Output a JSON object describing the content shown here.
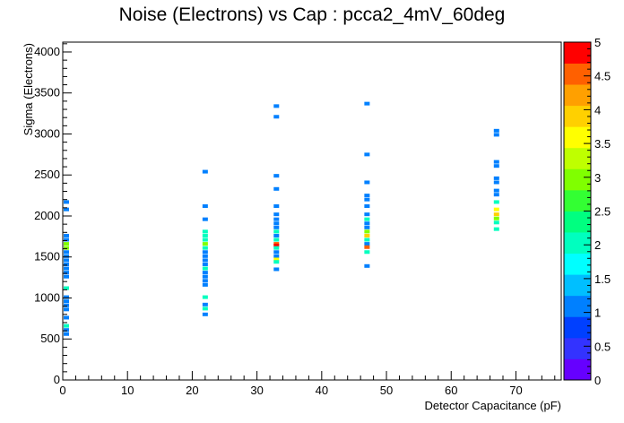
{
  "chart_data": {
    "type": "scatter",
    "title": "Noise (Electrons) vs Cap : pcca2_4mV_60deg",
    "xlabel": "Detector Capacitance (pF)",
    "ylabel": "Sigma (Electrons)",
    "xlim": [
      0,
      77
    ],
    "ylim": [
      0,
      4120
    ],
    "xticks": [
      0,
      10,
      20,
      30,
      40,
      50,
      60,
      70
    ],
    "yticks": [
      0,
      500,
      1000,
      1500,
      2000,
      2500,
      3000,
      3500,
      4000
    ],
    "z_range": [
      0,
      5
    ],
    "z_ticks": [
      0,
      0.5,
      1,
      1.5,
      2,
      2.5,
      3,
      3.5,
      4,
      4.5,
      5
    ],
    "palette": [
      "#6600ff",
      "#3333ff",
      "#0040ff",
      "#0080ff",
      "#00bfff",
      "#00ffff",
      "#00ffbf",
      "#00ff80",
      "#33ff33",
      "#80ff00",
      "#bfff00",
      "#ffff00",
      "#ffd000",
      "#ffa000",
      "#ff6000",
      "#ff0000"
    ],
    "points": [
      {
        "x": 0,
        "y": 2170,
        "z": 1
      },
      {
        "x": 0,
        "y": 2080,
        "z": 1
      },
      {
        "x": 0,
        "y": 1760,
        "z": 1
      },
      {
        "x": 0,
        "y": 1710,
        "z": 1
      },
      {
        "x": 0,
        "y": 1660,
        "z": 3
      },
      {
        "x": 0,
        "y": 1610,
        "z": 3
      },
      {
        "x": 0,
        "y": 1560,
        "z": 1
      },
      {
        "x": 0,
        "y": 1510,
        "z": 1
      },
      {
        "x": 0,
        "y": 1460,
        "z": 1
      },
      {
        "x": 0,
        "y": 1410,
        "z": 1
      },
      {
        "x": 0,
        "y": 1360,
        "z": 1
      },
      {
        "x": 0,
        "y": 1310,
        "z": 1
      },
      {
        "x": 0,
        "y": 1260,
        "z": 1
      },
      {
        "x": 0,
        "y": 1120,
        "z": 2
      },
      {
        "x": 0,
        "y": 1010,
        "z": 1
      },
      {
        "x": 0,
        "y": 960,
        "z": 1
      },
      {
        "x": 0,
        "y": 910,
        "z": 1
      },
      {
        "x": 0,
        "y": 860,
        "z": 1
      },
      {
        "x": 0,
        "y": 760,
        "z": 1
      },
      {
        "x": 0,
        "y": 660,
        "z": 2
      },
      {
        "x": 0,
        "y": 610,
        "z": 1
      },
      {
        "x": 0,
        "y": 560,
        "z": 1
      },
      {
        "x": 22,
        "y": 2540,
        "z": 1
      },
      {
        "x": 22,
        "y": 2120,
        "z": 1
      },
      {
        "x": 22,
        "y": 1960,
        "z": 1
      },
      {
        "x": 22,
        "y": 1810,
        "z": 2
      },
      {
        "x": 22,
        "y": 1760,
        "z": 2
      },
      {
        "x": 22,
        "y": 1710,
        "z": 2
      },
      {
        "x": 22,
        "y": 1660,
        "z": 3
      },
      {
        "x": 22,
        "y": 1610,
        "z": 2
      },
      {
        "x": 22,
        "y": 1560,
        "z": 1
      },
      {
        "x": 22,
        "y": 1510,
        "z": 1
      },
      {
        "x": 22,
        "y": 1460,
        "z": 1
      },
      {
        "x": 22,
        "y": 1410,
        "z": 1
      },
      {
        "x": 22,
        "y": 1360,
        "z": 2
      },
      {
        "x": 22,
        "y": 1310,
        "z": 1
      },
      {
        "x": 22,
        "y": 1260,
        "z": 1
      },
      {
        "x": 22,
        "y": 1210,
        "z": 1
      },
      {
        "x": 22,
        "y": 1160,
        "z": 1
      },
      {
        "x": 22,
        "y": 1010,
        "z": 2
      },
      {
        "x": 22,
        "y": 920,
        "z": 1
      },
      {
        "x": 22,
        "y": 870,
        "z": 2
      },
      {
        "x": 22,
        "y": 800,
        "z": 1
      },
      {
        "x": 33,
        "y": 3340,
        "z": 1
      },
      {
        "x": 33,
        "y": 3210,
        "z": 1
      },
      {
        "x": 33,
        "y": 2490,
        "z": 1
      },
      {
        "x": 33,
        "y": 2330,
        "z": 1
      },
      {
        "x": 33,
        "y": 2120,
        "z": 1
      },
      {
        "x": 33,
        "y": 2020,
        "z": 1
      },
      {
        "x": 33,
        "y": 1960,
        "z": 1
      },
      {
        "x": 33,
        "y": 1910,
        "z": 1
      },
      {
        "x": 33,
        "y": 1860,
        "z": 1
      },
      {
        "x": 33,
        "y": 1810,
        "z": 2
      },
      {
        "x": 33,
        "y": 1760,
        "z": 1
      },
      {
        "x": 33,
        "y": 1710,
        "z": 2
      },
      {
        "x": 33,
        "y": 1660,
        "z": 4.5
      },
      {
        "x": 33,
        "y": 1640,
        "z": 5
      },
      {
        "x": 33,
        "y": 1610,
        "z": 2
      },
      {
        "x": 33,
        "y": 1560,
        "z": 1
      },
      {
        "x": 33,
        "y": 1510,
        "z": 1
      },
      {
        "x": 33,
        "y": 1470,
        "z": 3.5
      },
      {
        "x": 33,
        "y": 1440,
        "z": 2
      },
      {
        "x": 33,
        "y": 1350,
        "z": 1
      },
      {
        "x": 47,
        "y": 3370,
        "z": 1
      },
      {
        "x": 47,
        "y": 2750,
        "z": 1
      },
      {
        "x": 47,
        "y": 2410,
        "z": 1
      },
      {
        "x": 47,
        "y": 2250,
        "z": 1
      },
      {
        "x": 47,
        "y": 2200,
        "z": 1
      },
      {
        "x": 47,
        "y": 2120,
        "z": 1
      },
      {
        "x": 47,
        "y": 2020,
        "z": 1
      },
      {
        "x": 47,
        "y": 1960,
        "z": 2
      },
      {
        "x": 47,
        "y": 1910,
        "z": 1
      },
      {
        "x": 47,
        "y": 1860,
        "z": 1
      },
      {
        "x": 47,
        "y": 1810,
        "z": 3
      },
      {
        "x": 47,
        "y": 1760,
        "z": 4
      },
      {
        "x": 47,
        "y": 1710,
        "z": 2
      },
      {
        "x": 47,
        "y": 1660,
        "z": 1
      },
      {
        "x": 47,
        "y": 1620,
        "z": 4.5
      },
      {
        "x": 47,
        "y": 1560,
        "z": 2
      },
      {
        "x": 47,
        "y": 1390,
        "z": 1
      },
      {
        "x": 67,
        "y": 3040,
        "z": 1
      },
      {
        "x": 67,
        "y": 2990,
        "z": 1
      },
      {
        "x": 67,
        "y": 2660,
        "z": 1
      },
      {
        "x": 67,
        "y": 2610,
        "z": 1
      },
      {
        "x": 67,
        "y": 2460,
        "z": 1
      },
      {
        "x": 67,
        "y": 2410,
        "z": 1
      },
      {
        "x": 67,
        "y": 2310,
        "z": 1
      },
      {
        "x": 67,
        "y": 2260,
        "z": 1
      },
      {
        "x": 67,
        "y": 2170,
        "z": 2
      },
      {
        "x": 67,
        "y": 2080,
        "z": 3.5
      },
      {
        "x": 67,
        "y": 2020,
        "z": 4
      },
      {
        "x": 67,
        "y": 1970,
        "z": 3
      },
      {
        "x": 67,
        "y": 1920,
        "z": 2
      },
      {
        "x": 67,
        "y": 1840,
        "z": 2
      }
    ]
  }
}
